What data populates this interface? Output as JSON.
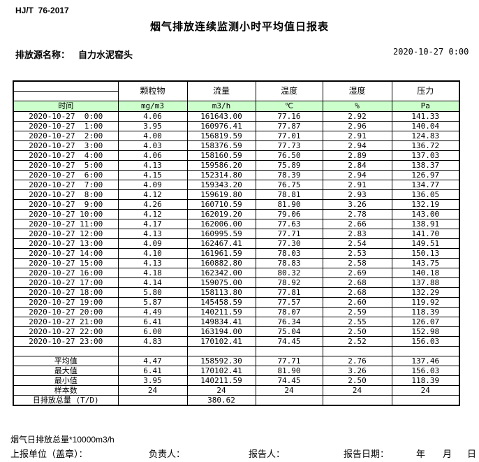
{
  "page": {
    "standard_code": "HJ/T  76-2017",
    "title": "烟气排放连续监测小时平均值日报表",
    "source_label": "排放源名称：",
    "source_name": "自力水泥窑头",
    "report_datetime": "2020-10-27 0:00"
  },
  "table": {
    "time_header": "时间",
    "param_headers": [
      "颗粒物",
      "流量",
      "温度",
      "湿度",
      "压力"
    ],
    "unit_headers": [
      "mg/m3",
      "m3/h",
      "℃",
      "%",
      "Pa"
    ],
    "rows": [
      {
        "time": "2020-10-27  0:00",
        "values": [
          "4.06",
          "161643.00",
          "77.16",
          "2.92",
          "141.33"
        ]
      },
      {
        "time": "2020-10-27  1:00",
        "values": [
          "3.95",
          "160976.41",
          "77.87",
          "2.96",
          "140.04"
        ]
      },
      {
        "time": "2020-10-27  2:00",
        "values": [
          "4.00",
          "156819.59",
          "77.01",
          "2.91",
          "124.83"
        ]
      },
      {
        "time": "2020-10-27  3:00",
        "values": [
          "4.03",
          "158376.59",
          "77.73",
          "2.94",
          "136.72"
        ]
      },
      {
        "time": "2020-10-27  4:00",
        "values": [
          "4.06",
          "158160.59",
          "76.50",
          "2.89",
          "137.03"
        ]
      },
      {
        "time": "2020-10-27  5:00",
        "values": [
          "4.13",
          "159586.20",
          "75.89",
          "2.84",
          "138.37"
        ]
      },
      {
        "time": "2020-10-27  6:00",
        "values": [
          "4.15",
          "152314.80",
          "78.39",
          "2.94",
          "126.97"
        ]
      },
      {
        "time": "2020-10-27  7:00",
        "values": [
          "4.09",
          "159343.20",
          "76.75",
          "2.91",
          "134.77"
        ]
      },
      {
        "time": "2020-10-27  8:00",
        "values": [
          "4.12",
          "159619.80",
          "78.81",
          "2.93",
          "136.05"
        ]
      },
      {
        "time": "2020-10-27  9:00",
        "values": [
          "4.26",
          "160710.59",
          "81.90",
          "3.26",
          "132.19"
        ]
      },
      {
        "time": "2020-10-27 10:00",
        "values": [
          "4.12",
          "162019.20",
          "79.06",
          "2.78",
          "143.00"
        ]
      },
      {
        "time": "2020-10-27 11:00",
        "values": [
          "4.17",
          "162006.00",
          "77.63",
          "2.66",
          "138.91"
        ]
      },
      {
        "time": "2020-10-27 12:00",
        "values": [
          "4.13",
          "160995.59",
          "77.71",
          "2.83",
          "141.70"
        ]
      },
      {
        "time": "2020-10-27 13:00",
        "values": [
          "4.09",
          "162467.41",
          "77.30",
          "2.54",
          "149.51"
        ]
      },
      {
        "time": "2020-10-27 14:00",
        "values": [
          "4.10",
          "161961.59",
          "78.03",
          "2.53",
          "150.13"
        ]
      },
      {
        "time": "2020-10-27 15:00",
        "values": [
          "4.13",
          "160882.80",
          "78.83",
          "2.58",
          "143.75"
        ]
      },
      {
        "time": "2020-10-27 16:00",
        "values": [
          "4.18",
          "162342.00",
          "80.32",
          "2.69",
          "140.18"
        ]
      },
      {
        "time": "2020-10-27 17:00",
        "values": [
          "4.14",
          "159075.00",
          "78.92",
          "2.68",
          "137.88"
        ]
      },
      {
        "time": "2020-10-27 18:00",
        "values": [
          "5.80",
          "158113.80",
          "77.81",
          "2.68",
          "132.29"
        ]
      },
      {
        "time": "2020-10-27 19:00",
        "values": [
          "5.87",
          "145458.59",
          "77.57",
          "2.60",
          "119.92"
        ]
      },
      {
        "time": "2020-10-27 20:00",
        "values": [
          "4.49",
          "140211.59",
          "78.07",
          "2.59",
          "118.39"
        ]
      },
      {
        "time": "2020-10-27 21:00",
        "values": [
          "6.41",
          "149834.41",
          "76.34",
          "2.55",
          "126.07"
        ]
      },
      {
        "time": "2020-10-27 22:00",
        "values": [
          "6.00",
          "163194.00",
          "75.04",
          "2.50",
          "152.98"
        ]
      },
      {
        "time": "2020-10-27 23:00",
        "values": [
          "4.83",
          "170102.41",
          "74.45",
          "2.52",
          "156.03"
        ]
      }
    ],
    "summary": [
      {
        "label": "平均值",
        "values": [
          "4.47",
          "158592.30",
          "77.71",
          "2.76",
          "137.46"
        ]
      },
      {
        "label": "最大值",
        "values": [
          "6.41",
          "170102.41",
          "81.90",
          "3.26",
          "156.03"
        ]
      },
      {
        "label": "最小值",
        "values": [
          "3.95",
          "140211.59",
          "74.45",
          "2.50",
          "118.39"
        ]
      },
      {
        "label": "样本数",
        "values": [
          "24",
          "24",
          "24",
          "24",
          "24"
        ]
      },
      {
        "label": "日排放总量 (T/D)",
        "values": [
          "",
          "380.62",
          "",
          "",
          ""
        ]
      }
    ]
  },
  "footer": {
    "note": "烟气日排放总量*10000m3/h",
    "report_unit_label": "上报单位（盖章）：",
    "responsible_label": "负责人：",
    "reporter_label": "报告人：",
    "report_date_label": "报告日期：",
    "year_label": "年",
    "month_label": "月",
    "day_label": "日"
  },
  "colors": {
    "header_green": "#ccffcc",
    "border": "#000000"
  }
}
